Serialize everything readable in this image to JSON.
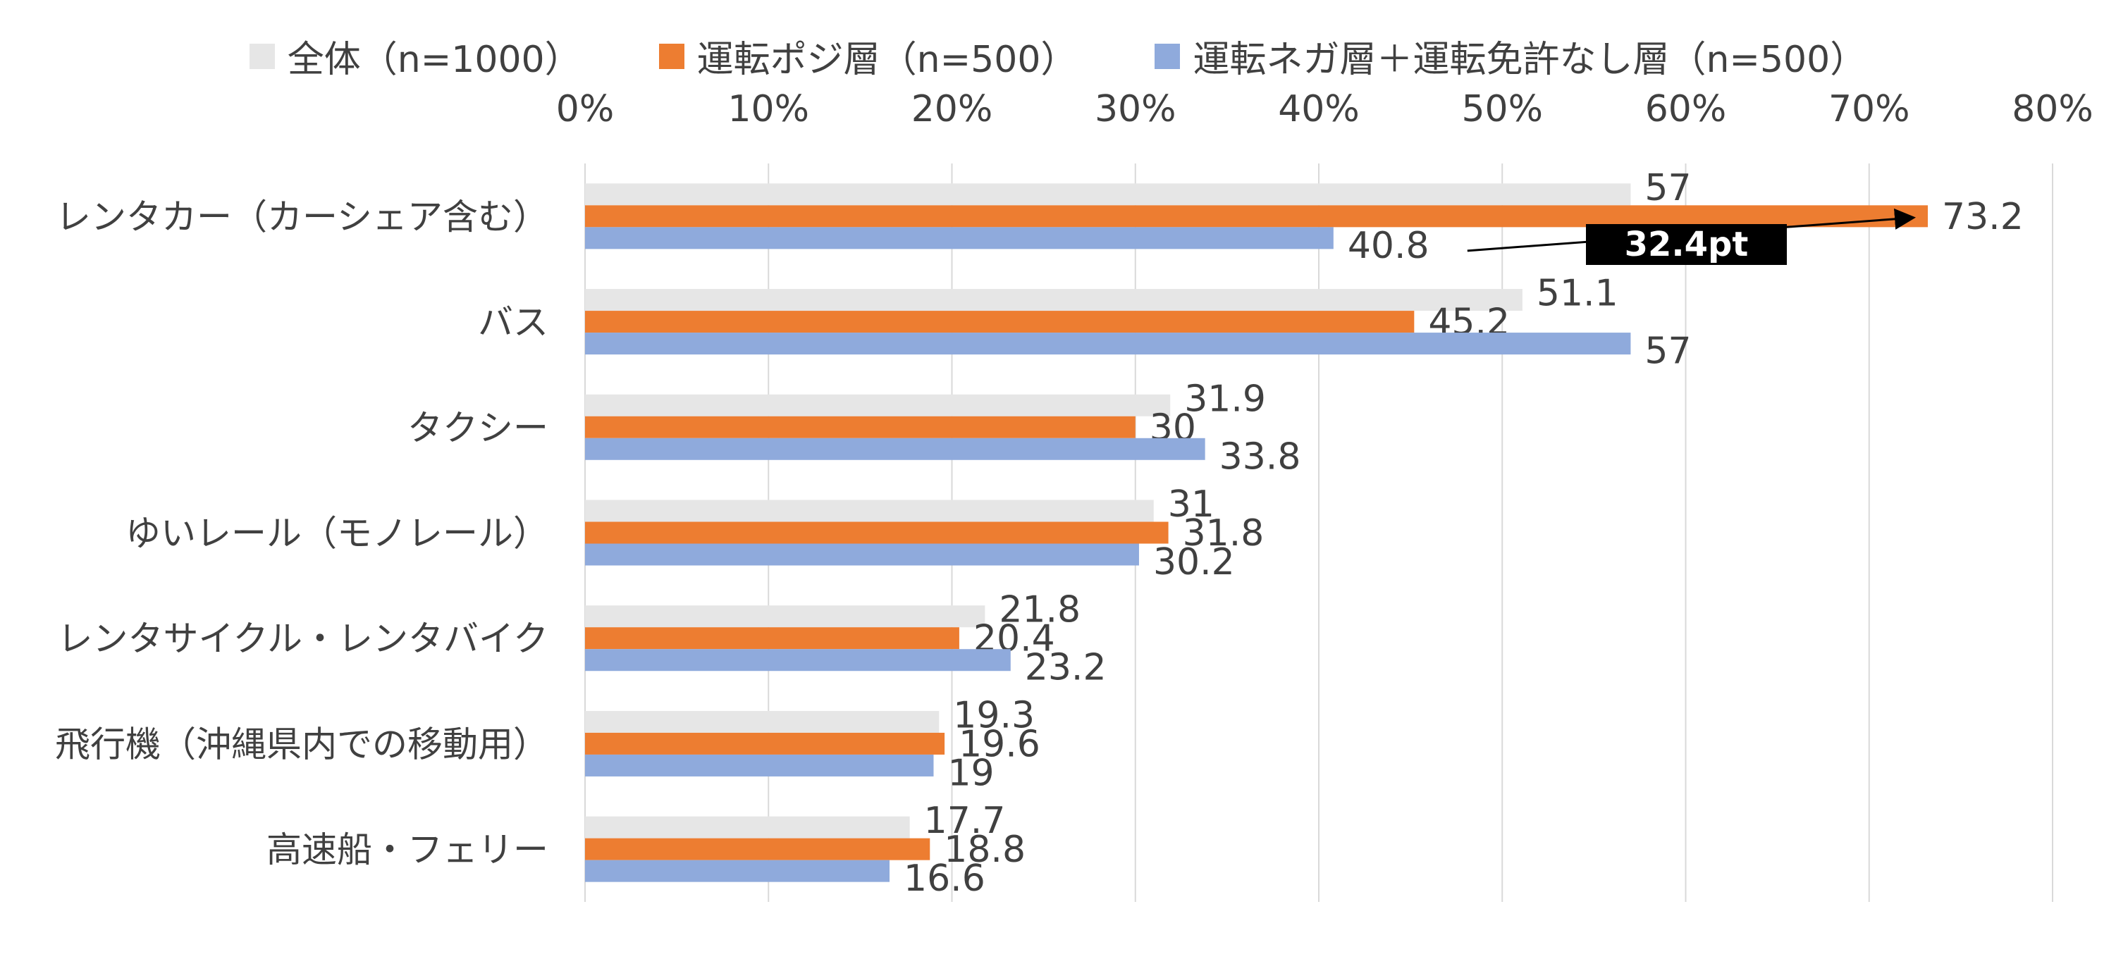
{
  "chart_data": {
    "type": "bar",
    "orientation": "horizontal",
    "xlim": [
      0,
      80
    ],
    "x_ticks": [
      0,
      10,
      20,
      30,
      40,
      50,
      60,
      70,
      80
    ],
    "x_tick_labels": [
      "0%",
      "10%",
      "20%",
      "30%",
      "40%",
      "50%",
      "60%",
      "70%",
      "80%"
    ],
    "x_axis_position": "top",
    "grid": true,
    "legend_position": "top",
    "categories": [
      "レンタカー（カーシェア含む）",
      "バス",
      "タクシー",
      "ゆいレール（モノレール）",
      "レンタサイクル・レンタバイク",
      "飛行機（沖縄県内での移動用）",
      "高速船・フェリー"
    ],
    "series": [
      {
        "name": "全体（n=1000）",
        "color": "#e6e6e6",
        "values": [
          57,
          51.1,
          31.9,
          31,
          21.8,
          19.3,
          17.7
        ]
      },
      {
        "name": "運転ポジ層（n=500）",
        "color": "#ed7d31",
        "values": [
          73.2,
          45.2,
          30,
          31.8,
          20.4,
          19.6,
          18.8
        ]
      },
      {
        "name": "運転ネガ層＋運転免許なし層（n=500）",
        "color": "#8faadc",
        "values": [
          40.8,
          57,
          33.8,
          30.2,
          23.2,
          19,
          16.6
        ]
      }
    ],
    "annotation": {
      "text": "32.4pt",
      "from_value": 40.8,
      "to_value": 73.2,
      "category": "レンタカー（カーシェア含む）"
    }
  },
  "styles": {
    "text_color": "#404040",
    "grid_color": "#d9d9d9",
    "annotation_bg": "#000000",
    "annotation_text": "#ffffff"
  }
}
